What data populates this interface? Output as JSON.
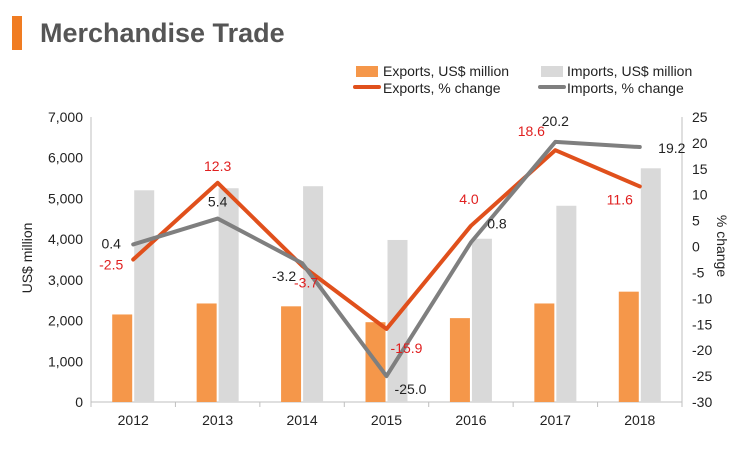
{
  "title": "Merchandise Trade",
  "colors": {
    "accent_bar": "#f07c22",
    "title_text": "#555555",
    "exports_bar": "#f5974a",
    "imports_bar": "#d9d9d9",
    "exports_line": "#e0501c",
    "imports_line": "#7f7f7f",
    "exports_label": "#e01f1f",
    "imports_label": "#222222"
  },
  "chart_data": {
    "type": "bar",
    "categories": [
      "2012",
      "2013",
      "2014",
      "2015",
      "2016",
      "2017",
      "2018"
    ],
    "ylabel": "US$ million",
    "y2label": "% change",
    "ylim": [
      0,
      7000
    ],
    "y2lim": [
      -30,
      25
    ],
    "yticks": [
      "0",
      "1,000",
      "2,000",
      "3,000",
      "4,000",
      "5,000",
      "6,000",
      "7,000"
    ],
    "y2ticks": [
      "-30",
      "-25",
      "-20",
      "-15",
      "-10",
      "-5",
      "0",
      "5",
      "10",
      "15",
      "20",
      "25"
    ],
    "legend_position": "top-right",
    "grid": false,
    "series": [
      {
        "name": "Exports, US$ million",
        "type": "bar",
        "axis": "left",
        "values": [
          2150,
          2420,
          2350,
          1960,
          2060,
          2420,
          2710
        ]
      },
      {
        "name": "Imports, US$ million",
        "type": "bar",
        "axis": "left",
        "values": [
          5200,
          5250,
          5300,
          3980,
          4010,
          4820,
          5740
        ]
      },
      {
        "name": "Exports, % change",
        "type": "line",
        "axis": "right",
        "values": [
          -2.5,
          12.3,
          -3.7,
          -15.9,
          4.0,
          18.6,
          11.6
        ],
        "labels": [
          "-2.5",
          "12.3",
          "-3.7",
          "-15.9",
          "4.0",
          "18.6",
          "11.6"
        ]
      },
      {
        "name": "Imports, % change",
        "type": "line",
        "axis": "right",
        "values": [
          0.4,
          5.4,
          -3.2,
          -25.0,
          0.8,
          20.2,
          19.2
        ],
        "labels": [
          "0.4",
          "5.4",
          "-3.2",
          "-25.0",
          "0.8",
          "20.2",
          "19.2"
        ]
      }
    ]
  }
}
